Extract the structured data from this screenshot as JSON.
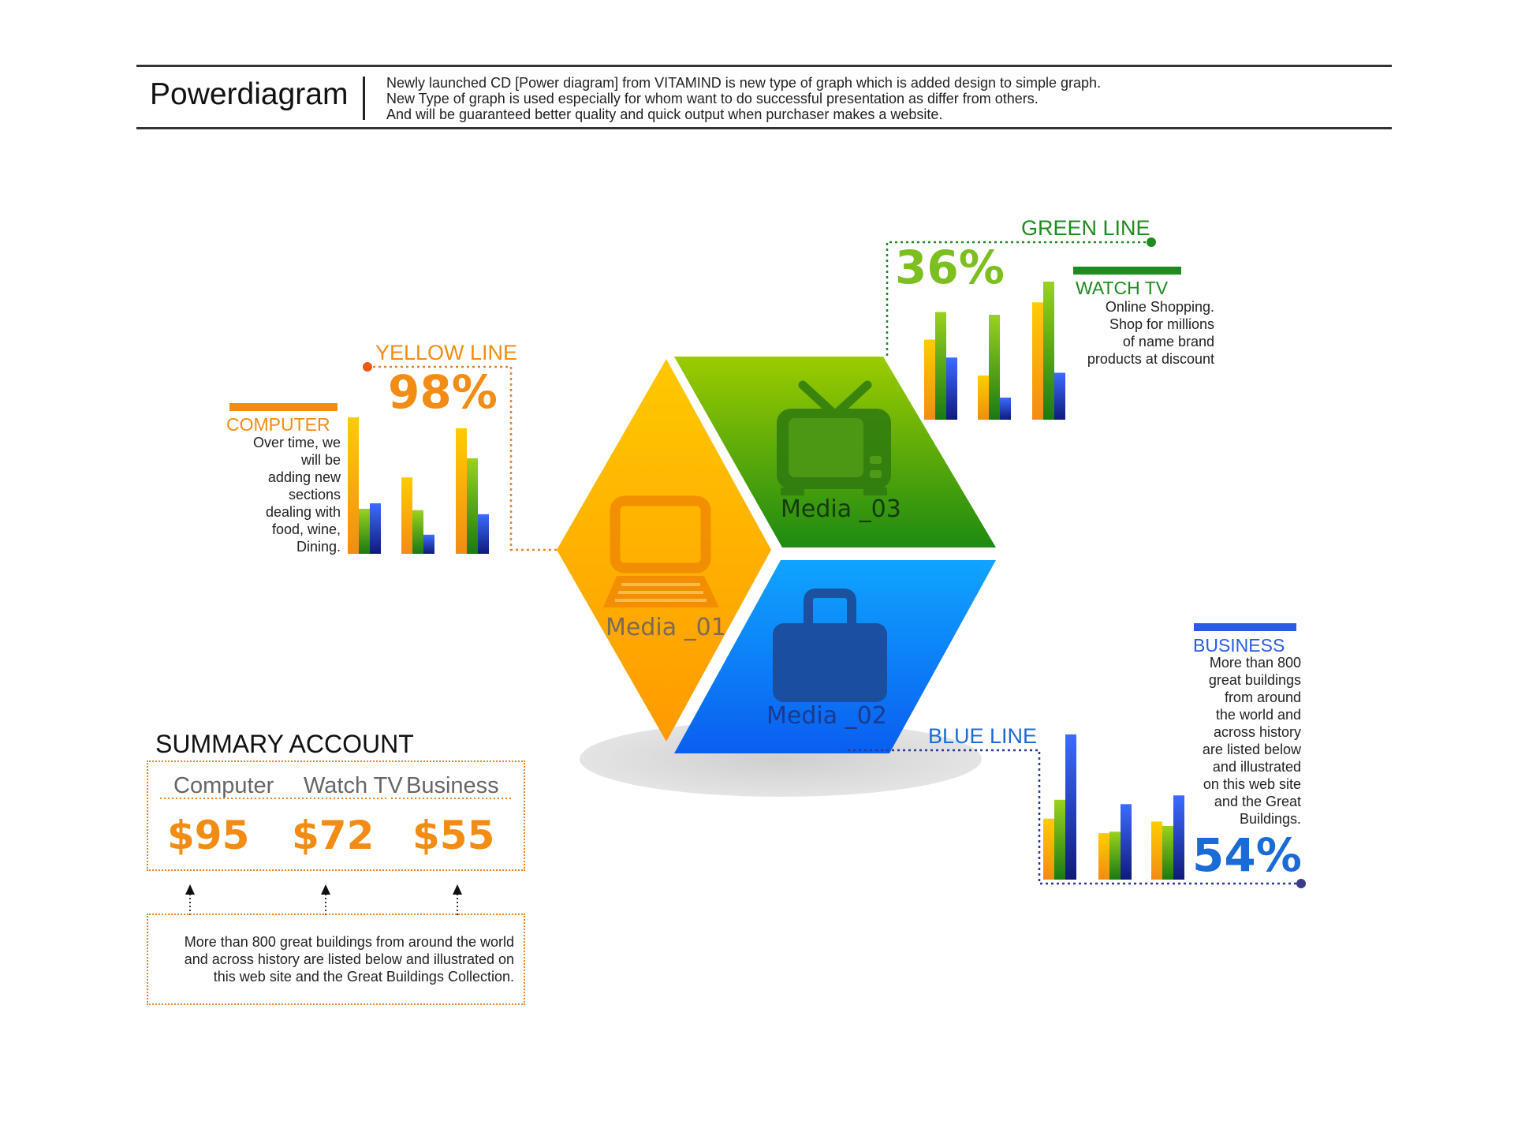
{
  "header": {
    "title": "Powerdiagram",
    "desc_lines": [
      "Newly launched CD [Power diagram] from VITAMIND is new type of graph which is added design to simple graph.",
      "New Type of graph is used especially for whom want to do successful presentation as differ from others.",
      "And will be guaranteed better quality and quick output when purchaser makes a website."
    ]
  },
  "hexagon": {
    "media_01": "Media _01",
    "media_02": "Media _02",
    "media_03": "Media _03",
    "icons": [
      "computer-icon",
      "briefcase-icon",
      "tv-icon"
    ]
  },
  "yellow": {
    "line_label": "YELLOW LINE",
    "percent": "98%",
    "category": "COMPUTER",
    "text_lines": [
      "Over time, we",
      "will be",
      "adding new",
      "sections",
      "dealing with",
      "food, wine,",
      "Dining."
    ],
    "color": "#f28c14"
  },
  "green": {
    "line_label": "GREEN LINE",
    "percent": "36%",
    "category": "WATCH TV",
    "text_lines": [
      "Online Shopping.",
      "Shop for millions",
      "of name brand",
      "products at discount"
    ],
    "color": "#1f8a1f"
  },
  "blue": {
    "line_label": "BLUE LINE",
    "percent": "54%",
    "category": "BUSINESS",
    "text_lines": [
      "More than 800",
      "great buildings",
      "from around",
      "the world and",
      "across history",
      "are listed below",
      "and illustrated",
      "on this web site",
      "and the Great",
      "Buildings."
    ],
    "color": "#1a6bd8"
  },
  "summary": {
    "title": "SUMMARY ACCOUNT",
    "headers": [
      "Computer",
      "Watch TV",
      "Business"
    ],
    "values": [
      "$95",
      "$72",
      "$55"
    ],
    "note_lines": [
      "More than 800 great buildings from around the world",
      "and across history are listed below and illustrated on",
      "this web site and the Great Buildings Collection."
    ]
  },
  "chart_data": [
    {
      "type": "bar",
      "series_colors": [
        "#f7b21c",
        "#7cbf1e",
        "#2a4fd4"
      ],
      "groups": [
        [
          100,
          33,
          37
        ],
        [
          56,
          32,
          14
        ],
        [
          92,
          70,
          29
        ]
      ]
    },
    {
      "type": "bar",
      "series_colors": [
        "#f7b21c",
        "#7cbf1e",
        "#2a4fd4"
      ],
      "groups": [
        [
          58,
          78,
          45
        ],
        [
          32,
          76,
          16
        ],
        [
          85,
          100,
          34
        ]
      ]
    },
    {
      "type": "bar",
      "series_colors": [
        "#f7b21c",
        "#7cbf1e",
        "#2a4fd4"
      ],
      "groups": [
        [
          42,
          55,
          100
        ],
        [
          32,
          33,
          52
        ],
        [
          40,
          37,
          58
        ]
      ]
    }
  ]
}
